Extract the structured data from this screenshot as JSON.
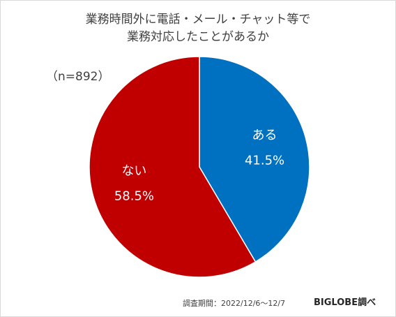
{
  "chart_data": {
    "type": "pie",
    "title_lines": [
      "業務時間外に電話・メール・チャット等で",
      "業務対応したことがあるか"
    ],
    "sample_label": "（n=892）",
    "slices": [
      {
        "label": "ある",
        "value_label": "41.5%",
        "value": 41.5,
        "color": "#0070c0"
      },
      {
        "label": "ない",
        "value_label": "58.5%",
        "value": 58.5,
        "color": "#c00000"
      }
    ],
    "start_angle_deg": 0,
    "direction": "clockwise"
  },
  "footer": {
    "period": "調査期間：2022/12/6〜12/7",
    "source": "BIGLOBE調べ"
  }
}
